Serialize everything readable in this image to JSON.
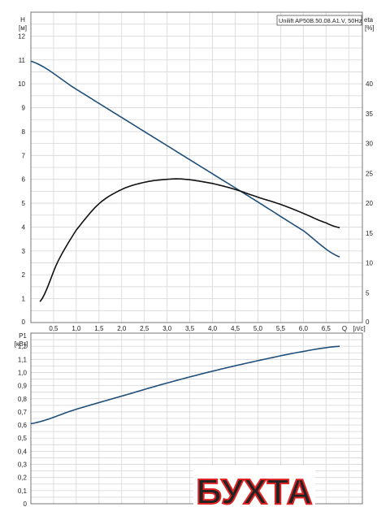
{
  "colors": {
    "grid": "#d6d6d6",
    "frame": "#555555",
    "head_curve": "#1f4e79",
    "eff_curve": "#111111",
    "power_curve": "#1f4e79",
    "watermark": "#e02424"
  },
  "chart_data": [
    {
      "type": "line",
      "title": "Unilift AP50B.50.08.A1.V, 50Hz",
      "ylabel": "H",
      "yunit": "[м]",
      "y2label": "eta",
      "y2unit": "[%]",
      "xlabel": "Q",
      "xunit": "[л/с]",
      "xlim": [
        0,
        7.3
      ],
      "ylim": [
        0,
        13
      ],
      "y2lim": [
        0,
        52
      ],
      "grid": true,
      "x_ticks": [
        "0,5",
        "1,0",
        "1,5",
        "2,0",
        "2,5",
        "3,0",
        "3,5",
        "4,0",
        "4,5",
        "5,0",
        "5,5",
        "6,0",
        "6,5"
      ],
      "y_ticks": [
        "1",
        "2",
        "3",
        "4",
        "5",
        "6",
        "7",
        "8",
        "9",
        "10",
        "11",
        "12"
      ],
      "y2_ticks": [
        "5",
        "10",
        "15",
        "20",
        "25",
        "30",
        "35",
        "40"
      ],
      "corner_labels": [
        "0",
        "0"
      ],
      "series": [
        {
          "axis": "left",
          "x": [
            0,
            1,
            2,
            3,
            4,
            5,
            6,
            6.8
          ],
          "y": [
            10.95,
            9.77,
            8.59,
            7.41,
            6.23,
            5.05,
            3.85,
            2.75
          ]
        },
        {
          "axis": "right",
          "x": [
            0.2,
            0.6,
            1,
            1.5,
            2,
            2.5,
            3,
            3.4,
            4,
            4.5,
            5,
            5.5,
            6,
            6.5,
            6.8
          ],
          "y": [
            3.5,
            10.3,
            15.5,
            19.9,
            22.3,
            23.5,
            24.0,
            24.0,
            23.3,
            22.3,
            21.0,
            19.8,
            18.3,
            16.7,
            15.9
          ]
        }
      ]
    },
    {
      "type": "line",
      "ylabel": "P1",
      "yunit": "[кВт]",
      "xlim": [
        0,
        7.3
      ],
      "ylim": [
        0,
        1.3
      ],
      "grid": true,
      "y_ticks": [
        "0",
        "0,1",
        "0,2",
        "0,3",
        "0,4",
        "0,5",
        "0,6",
        "0,7",
        "0,8",
        "0,9",
        "1,0",
        "1,1",
        "1,2"
      ],
      "series": [
        {
          "x": [
            0,
            1,
            2,
            3,
            4,
            5,
            6,
            6.8
          ],
          "y": [
            0.61,
            0.72,
            0.82,
            0.92,
            1.01,
            1.09,
            1.16,
            1.2
          ]
        }
      ]
    }
  ],
  "watermark": {
    "text": "БУХТА"
  }
}
